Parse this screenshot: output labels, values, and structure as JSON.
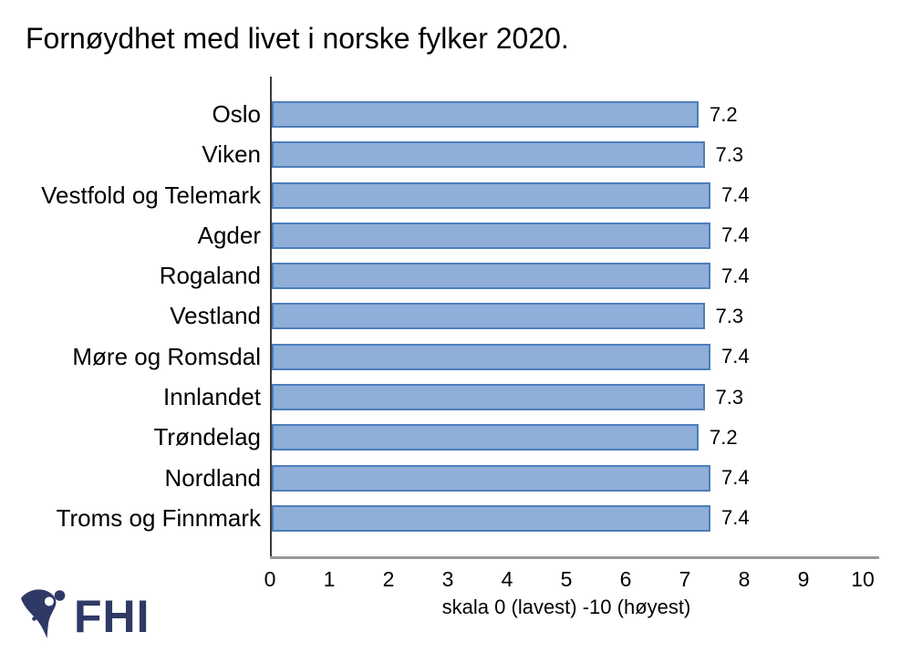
{
  "chart": {
    "title": "Fornøydhet med livet i norske fylker 2020."
  },
  "chart_data": {
    "type": "bar",
    "orientation": "horizontal",
    "title": "Fornøydhet med livet i norske fylker 2020.",
    "categories": [
      "Oslo",
      "Viken",
      "Vestfold og Telemark",
      "Agder",
      "Rogaland",
      "Vestland",
      "Møre og Romsdal",
      "Innlandet",
      "Trøndelag",
      "Nordland",
      "Troms og Finnmark"
    ],
    "values": [
      7.2,
      7.3,
      7.4,
      7.4,
      7.4,
      7.3,
      7.4,
      7.3,
      7.2,
      7.4,
      7.4
    ],
    "value_labels": [
      "7.2",
      "7.3",
      "7.4",
      "7.4",
      "7.4",
      "7.3",
      "7.4",
      "7.3",
      "7.2",
      "7.4",
      "7.4"
    ],
    "xlabel": "skala 0 (lavest) -10 (høyest)",
    "ylabel": "",
    "xlim": [
      0,
      10
    ],
    "xticks": [
      "0",
      "1",
      "2",
      "3",
      "4",
      "5",
      "6",
      "7",
      "8",
      "9",
      "10"
    ],
    "grid": false,
    "legend": false,
    "data_labels": true
  },
  "footer": {
    "logo_text": "FHI"
  },
  "colors": {
    "bar_fill": "#8FAFD8",
    "bar_border": "#4D7EBC",
    "axis_line": "#3A3A3A",
    "baseline": "#9A9A9A",
    "logo_navy": "#2E3A65",
    "text_color": "#000000"
  }
}
